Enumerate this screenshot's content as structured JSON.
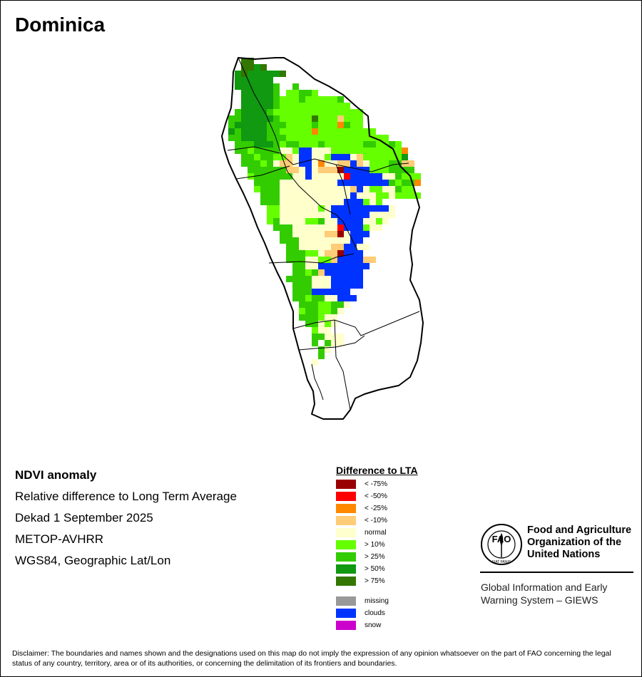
{
  "title": "Dominica",
  "info": {
    "product": "NDVI anomaly",
    "description": "Relative difference to Long Term Average",
    "period": "Dekad 1 September 2025",
    "sensor": "METOP-AVHRR",
    "projection": "WGS84, Geographic Lat/Lon"
  },
  "legend": {
    "title": "Difference to LTA",
    "items": [
      {
        "label": "< -75%",
        "color": "#990000"
      },
      {
        "label": "< -50%",
        "color": "#ff0000"
      },
      {
        "label": "< -25%",
        "color": "#ff8800"
      },
      {
        "label": "< -10%",
        "color": "#ffcc77"
      },
      {
        "label": "normal",
        "color": "#ffffcc"
      },
      {
        "label": "> 10%",
        "color": "#66ff00"
      },
      {
        "label": "> 25%",
        "color": "#33cc00"
      },
      {
        "label": "> 50%",
        "color": "#119911"
      },
      {
        "label": "> 75%",
        "color": "#337700"
      }
    ],
    "extra": [
      {
        "label": "missing",
        "color": "#999999"
      },
      {
        "label": "clouds",
        "color": "#0033ff"
      },
      {
        "label": "snow",
        "color": "#cc00cc"
      }
    ]
  },
  "fao": {
    "name_line1": "Food and Agriculture",
    "name_line2": "Organization of the",
    "name_line3": "United Nations",
    "logo_text": "FAO",
    "logo_motto": "FIAT PANIS"
  },
  "giews": {
    "line1": "Global Information and Early",
    "line2": "Warning System – GIEWS"
  },
  "disclaimer": "Disclaimer: The boundaries and names shown and the designations used on this map do not imply the expression of any opinion whatsoever on the part of FAO concerning the legal status of any country, territory, area or of its authorities, or concerning the delimitation of its frontiers and boundaries."
}
